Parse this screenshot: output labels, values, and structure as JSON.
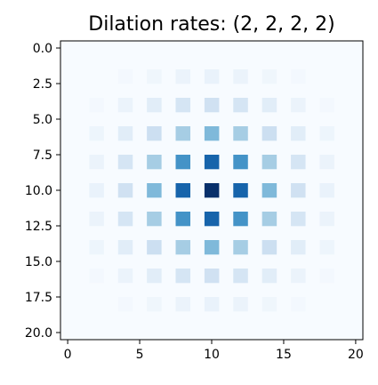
{
  "chart_data": {
    "type": "heatmap",
    "title": "Dilation rates: (2, 2, 2, 2)",
    "colormap": "Blues",
    "colormap_stops": [
      "#f7fbff",
      "#deebf7",
      "#c6dbef",
      "#9ecae1",
      "#6baed6",
      "#4292c6",
      "#2171b5",
      "#08519c",
      "#08306b"
    ],
    "xlim": [
      -0.5,
      20.5
    ],
    "ylim": [
      20.5,
      -0.5
    ],
    "x_ticks": [
      0,
      5,
      10,
      15,
      20
    ],
    "x_tick_labels": [
      "0",
      "5",
      "10",
      "15",
      "20"
    ],
    "y_ticks": [
      0.0,
      2.5,
      5.0,
      7.5,
      10.0,
      12.5,
      15.0,
      17.5,
      20.0
    ],
    "y_tick_labels": [
      "0.0",
      "2.5",
      "5.0",
      "7.5",
      "10.0",
      "12.5",
      "15.0",
      "17.5",
      "20.0"
    ],
    "vmin": 0,
    "vmax": 1,
    "cells": [
      {
        "row": 2,
        "col": 4,
        "value": 0.02
      },
      {
        "row": 2,
        "col": 6,
        "value": 0.04
      },
      {
        "row": 2,
        "col": 8,
        "value": 0.06
      },
      {
        "row": 2,
        "col": 10,
        "value": 0.07
      },
      {
        "row": 2,
        "col": 12,
        "value": 0.06
      },
      {
        "row": 2,
        "col": 14,
        "value": 0.04
      },
      {
        "row": 2,
        "col": 16,
        "value": 0.02
      },
      {
        "row": 4,
        "col": 2,
        "value": 0.02
      },
      {
        "row": 4,
        "col": 4,
        "value": 0.06
      },
      {
        "row": 4,
        "col": 6,
        "value": 0.11
      },
      {
        "row": 4,
        "col": 8,
        "value": 0.17
      },
      {
        "row": 4,
        "col": 10,
        "value": 0.2
      },
      {
        "row": 4,
        "col": 12,
        "value": 0.17
      },
      {
        "row": 4,
        "col": 14,
        "value": 0.11
      },
      {
        "row": 4,
        "col": 16,
        "value": 0.06
      },
      {
        "row": 4,
        "col": 18,
        "value": 0.02
      },
      {
        "row": 6,
        "col": 2,
        "value": 0.05
      },
      {
        "row": 6,
        "col": 4,
        "value": 0.11
      },
      {
        "row": 6,
        "col": 6,
        "value": 0.22
      },
      {
        "row": 6,
        "col": 8,
        "value": 0.35
      },
      {
        "row": 6,
        "col": 10,
        "value": 0.45
      },
      {
        "row": 6,
        "col": 12,
        "value": 0.35
      },
      {
        "row": 6,
        "col": 14,
        "value": 0.22
      },
      {
        "row": 6,
        "col": 16,
        "value": 0.11
      },
      {
        "row": 6,
        "col": 18,
        "value": 0.05
      },
      {
        "row": 8,
        "col": 2,
        "value": 0.06
      },
      {
        "row": 8,
        "col": 4,
        "value": 0.17
      },
      {
        "row": 8,
        "col": 6,
        "value": 0.35
      },
      {
        "row": 8,
        "col": 8,
        "value": 0.62
      },
      {
        "row": 8,
        "col": 10,
        "value": 0.8
      },
      {
        "row": 8,
        "col": 12,
        "value": 0.62
      },
      {
        "row": 8,
        "col": 14,
        "value": 0.35
      },
      {
        "row": 8,
        "col": 16,
        "value": 0.17
      },
      {
        "row": 8,
        "col": 18,
        "value": 0.06
      },
      {
        "row": 10,
        "col": 2,
        "value": 0.07
      },
      {
        "row": 10,
        "col": 4,
        "value": 0.2
      },
      {
        "row": 10,
        "col": 6,
        "value": 0.45
      },
      {
        "row": 10,
        "col": 8,
        "value": 0.8
      },
      {
        "row": 10,
        "col": 10,
        "value": 1.0
      },
      {
        "row": 10,
        "col": 12,
        "value": 0.8
      },
      {
        "row": 10,
        "col": 14,
        "value": 0.45
      },
      {
        "row": 10,
        "col": 16,
        "value": 0.2
      },
      {
        "row": 10,
        "col": 18,
        "value": 0.07
      },
      {
        "row": 12,
        "col": 2,
        "value": 0.06
      },
      {
        "row": 12,
        "col": 4,
        "value": 0.17
      },
      {
        "row": 12,
        "col": 6,
        "value": 0.35
      },
      {
        "row": 12,
        "col": 8,
        "value": 0.62
      },
      {
        "row": 12,
        "col": 10,
        "value": 0.8
      },
      {
        "row": 12,
        "col": 12,
        "value": 0.62
      },
      {
        "row": 12,
        "col": 14,
        "value": 0.35
      },
      {
        "row": 12,
        "col": 16,
        "value": 0.17
      },
      {
        "row": 12,
        "col": 18,
        "value": 0.06
      },
      {
        "row": 14,
        "col": 2,
        "value": 0.05
      },
      {
        "row": 14,
        "col": 4,
        "value": 0.11
      },
      {
        "row": 14,
        "col": 6,
        "value": 0.22
      },
      {
        "row": 14,
        "col": 8,
        "value": 0.35
      },
      {
        "row": 14,
        "col": 10,
        "value": 0.45
      },
      {
        "row": 14,
        "col": 12,
        "value": 0.35
      },
      {
        "row": 14,
        "col": 14,
        "value": 0.22
      },
      {
        "row": 14,
        "col": 16,
        "value": 0.11
      },
      {
        "row": 14,
        "col": 18,
        "value": 0.05
      },
      {
        "row": 16,
        "col": 2,
        "value": 0.02
      },
      {
        "row": 16,
        "col": 4,
        "value": 0.06
      },
      {
        "row": 16,
        "col": 6,
        "value": 0.11
      },
      {
        "row": 16,
        "col": 8,
        "value": 0.17
      },
      {
        "row": 16,
        "col": 10,
        "value": 0.2
      },
      {
        "row": 16,
        "col": 12,
        "value": 0.17
      },
      {
        "row": 16,
        "col": 14,
        "value": 0.11
      },
      {
        "row": 16,
        "col": 16,
        "value": 0.06
      },
      {
        "row": 16,
        "col": 18,
        "value": 0.02
      },
      {
        "row": 18,
        "col": 4,
        "value": 0.02
      },
      {
        "row": 18,
        "col": 6,
        "value": 0.04
      },
      {
        "row": 18,
        "col": 8,
        "value": 0.06
      },
      {
        "row": 18,
        "col": 10,
        "value": 0.07
      },
      {
        "row": 18,
        "col": 12,
        "value": 0.06
      },
      {
        "row": 18,
        "col": 14,
        "value": 0.04
      },
      {
        "row": 18,
        "col": 16,
        "value": 0.02
      }
    ]
  }
}
